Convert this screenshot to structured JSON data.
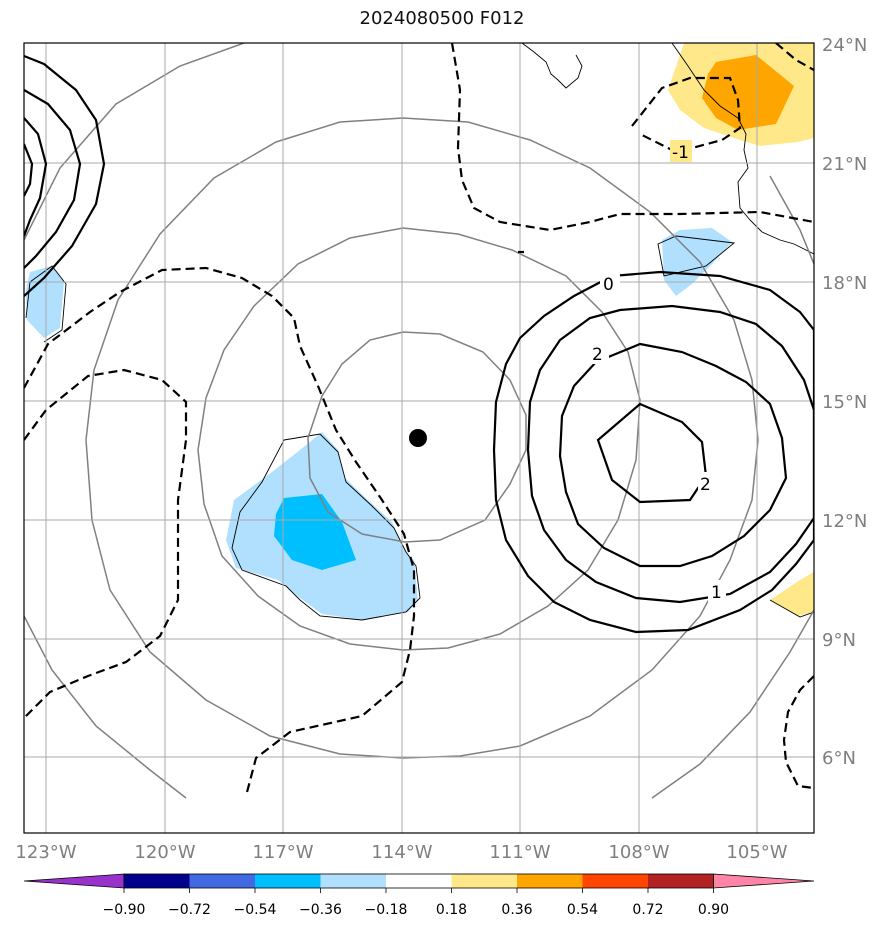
{
  "title": "2024080500 F012",
  "lat_labels": [
    "24°N",
    "21°N",
    "18°N",
    "15°N",
    "12°N",
    "9°N",
    "6°N"
  ],
  "lon_labels": [
    "123°W",
    "120°W",
    "117°W",
    "114°W",
    "111°W",
    "108°W",
    "105°W"
  ],
  "contour_labels": [
    "-1",
    "0",
    "2",
    "2",
    "1"
  ],
  "colorbar": {
    "ticks": [
      "−0.90",
      "−0.72",
      "−0.54",
      "−0.36",
      "−0.18",
      "0.18",
      "0.36",
      "0.54",
      "0.72",
      "0.90"
    ],
    "colors": [
      "#9932cc",
      "#00008b",
      "#4169e1",
      "#00bfff",
      "#b0e0fe",
      "#ffffff",
      "#ffe88a",
      "#ffa500",
      "#ff4500",
      "#b22222",
      "#ff85a8"
    ]
  },
  "map": {
    "extent": {
      "lon_min": -123.6,
      "lon_max": -103.4,
      "lat_min": 4.0,
      "lat_max": 24.0
    },
    "center_marker": {
      "lon": -113.6,
      "lat": 14.1
    },
    "grid_lons": [
      -123,
      -120,
      -117,
      -114,
      -111,
      -108,
      -105
    ],
    "grid_lats": [
      24,
      21,
      18,
      15,
      12,
      9,
      6
    ]
  }
}
